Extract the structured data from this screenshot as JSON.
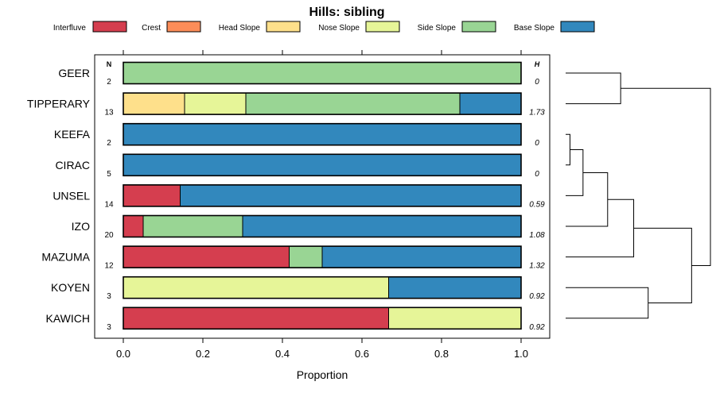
{
  "chart_data": {
    "type": "bar",
    "stacked": true,
    "orientation": "horizontal",
    "title": "Hills: sibling",
    "xlabel": "Proportion",
    "ylabel": "",
    "xlim": [
      0,
      1
    ],
    "xticks": [
      "0.0",
      "0.2",
      "0.4",
      "0.6",
      "0.8",
      "1.0"
    ],
    "xtick_values": [
      0,
      0.2,
      0.4,
      0.6,
      0.8,
      1.0
    ],
    "n_header": "N",
    "h_header": "H",
    "legend_position": "top",
    "legend": [
      {
        "name": "Interfluve",
        "color": "#d53e4f"
      },
      {
        "name": "Crest",
        "color": "#fc8d59"
      },
      {
        "name": "Head Slope",
        "color": "#fee08b"
      },
      {
        "name": "Nose Slope",
        "color": "#e6f598"
      },
      {
        "name": "Side Slope",
        "color": "#99d594"
      },
      {
        "name": "Base Slope",
        "color": "#3288bd"
      }
    ],
    "categories": [
      "GEER",
      "TIPPERARY",
      "KEEFA",
      "CIRAC",
      "UNSEL",
      "IZO",
      "MAZUMA",
      "KOYEN",
      "KAWICH"
    ],
    "n": [
      "2",
      "13",
      "2",
      "5",
      "14",
      "20",
      "12",
      "3",
      "3"
    ],
    "h": [
      "0",
      "1.73",
      "0",
      "0",
      "0.59",
      "1.08",
      "1.32",
      "0.92",
      "0.92"
    ],
    "series": [
      {
        "name": "Interfluve",
        "values": [
          0,
          0,
          0,
          0,
          0.143,
          0.05,
          0.417,
          0,
          0.667
        ]
      },
      {
        "name": "Crest",
        "values": [
          0,
          0,
          0,
          0,
          0,
          0,
          0,
          0,
          0
        ]
      },
      {
        "name": "Head Slope",
        "values": [
          0,
          0.154,
          0,
          0,
          0,
          0,
          0,
          0,
          0
        ]
      },
      {
        "name": "Nose Slope",
        "values": [
          0,
          0.154,
          0,
          0,
          0,
          0,
          0,
          0.667,
          0.333
        ]
      },
      {
        "name": "Side Slope",
        "values": [
          1,
          0.538,
          0,
          0,
          0,
          0.25,
          0.083,
          0,
          0
        ]
      },
      {
        "name": "Base Slope",
        "values": [
          0,
          0.154,
          1,
          1,
          0.857,
          0.7,
          0.5,
          0.333,
          0
        ]
      }
    ],
    "dendrogram": {
      "merges": [
        [
          "GEER",
          "TIPPERARY",
          0.38
        ],
        [
          "KEEFA",
          "CIRAC",
          0.03
        ],
        [
          "KEEFA+CIRAC",
          "UNSEL",
          0.12
        ],
        [
          "KEEFA+CIRAC+UNSEL",
          "IZO",
          0.29
        ],
        [
          "KEEFA+CIRAC+UNSEL+IZO",
          "MAZUMA",
          0.47
        ],
        [
          "KOYEN",
          "KAWICH",
          0.57
        ],
        [
          "KEEFA+CIRAC+UNSEL+IZO+MAZUMA",
          "KOYEN+KAWICH",
          0.87
        ],
        [
          "GEER+TIPPERARY",
          "KEEFA+CIRAC+UNSEL+IZO+MAZUMA+KOYEN+KAWICH",
          1.0
        ]
      ]
    }
  }
}
